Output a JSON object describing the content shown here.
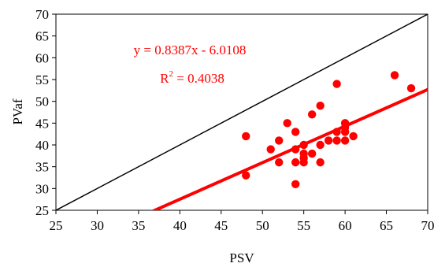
{
  "chart_data": {
    "type": "scatter",
    "xlabel": "PSV",
    "ylabel": "PVaf",
    "xlim": [
      25,
      70
    ],
    "ylim": [
      25,
      70
    ],
    "xticks": [
      25,
      30,
      35,
      40,
      45,
      50,
      55,
      60,
      65,
      70
    ],
    "yticks": [
      25,
      30,
      35,
      40,
      45,
      50,
      55,
      60,
      65,
      70
    ],
    "grid": false,
    "points": [
      {
        "x": 48,
        "y": 42
      },
      {
        "x": 48,
        "y": 33
      },
      {
        "x": 51,
        "y": 39
      },
      {
        "x": 52,
        "y": 41
      },
      {
        "x": 52,
        "y": 36
      },
      {
        "x": 53,
        "y": 45
      },
      {
        "x": 54,
        "y": 43
      },
      {
        "x": 54,
        "y": 39
      },
      {
        "x": 54,
        "y": 36
      },
      {
        "x": 54,
        "y": 31
      },
      {
        "x": 55,
        "y": 40
      },
      {
        "x": 55,
        "y": 38
      },
      {
        "x": 55,
        "y": 37
      },
      {
        "x": 55,
        "y": 36
      },
      {
        "x": 56,
        "y": 47
      },
      {
        "x": 56,
        "y": 38
      },
      {
        "x": 57,
        "y": 49
      },
      {
        "x": 57,
        "y": 40
      },
      {
        "x": 57,
        "y": 36
      },
      {
        "x": 58,
        "y": 41
      },
      {
        "x": 59,
        "y": 54
      },
      {
        "x": 59,
        "y": 43
      },
      {
        "x": 59,
        "y": 41
      },
      {
        "x": 60,
        "y": 45
      },
      {
        "x": 60,
        "y": 44
      },
      {
        "x": 60,
        "y": 43
      },
      {
        "x": 60,
        "y": 41
      },
      {
        "x": 61,
        "y": 42
      },
      {
        "x": 66,
        "y": 56
      },
      {
        "x": 68,
        "y": 53
      }
    ],
    "identity_line": {
      "x": [
        25,
        70
      ],
      "y": [
        25,
        70
      ]
    },
    "trendline": {
      "slope": 0.8387,
      "intercept": -6.0108
    },
    "equation_text": "y = 0.8387x - 6.0108",
    "r2_prefix": "R",
    "r2_exp": "2",
    "r2_suffix": " = 0.4038",
    "colors": {
      "points": "#ff0000",
      "trendline": "#ff0000",
      "identity": "#000000",
      "annotation": "#ff0000"
    }
  }
}
